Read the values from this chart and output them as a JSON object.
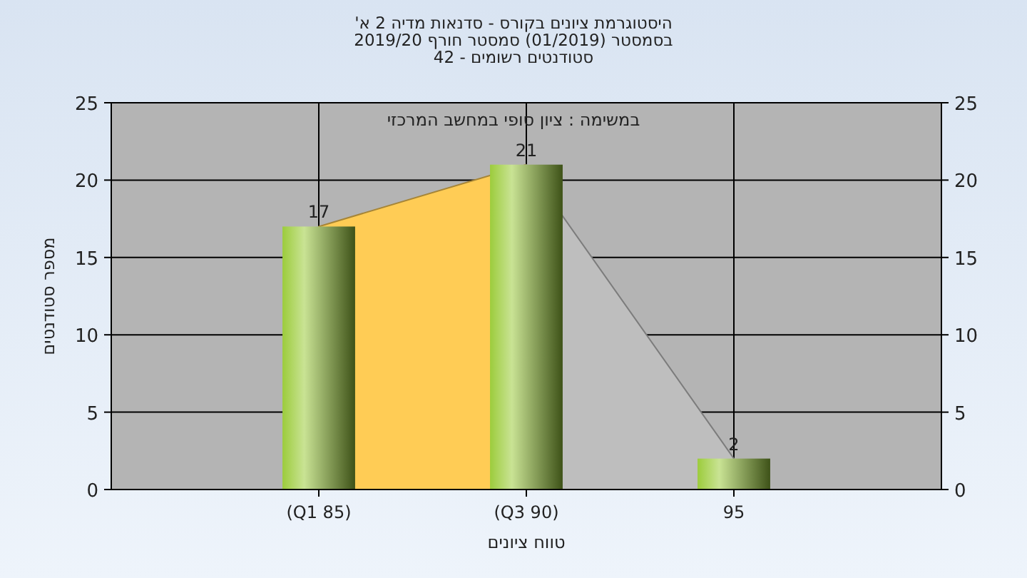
{
  "chart_data": {
    "type": "bar",
    "title": "היסטוגרמת ציונים בקורס - סדנאות מדיה 2 א'\nבסמסטר  (01/2019)  סמסטר חורף 2019/20\nסטודנטים רשומים - 42",
    "subtitle": "במשימה : ציון סופי במחשב המרכזי",
    "xlabel": "טווח ציונים",
    "ylabel": "מספר סטודנטים",
    "categories": [
      "(Q1 85)",
      "(Q3 90)",
      "95"
    ],
    "series": [
      {
        "type": "area",
        "color": "#ffcc55",
        "values": [
          17,
          21,
          null
        ]
      },
      {
        "type": "area",
        "color": "#bebebe",
        "values": [
          null,
          21,
          2
        ]
      },
      {
        "color": "#9ccc3c",
        "values": [
          17,
          21,
          2
        ],
        "value_labels": [
          "17",
          "21",
          "2"
        ]
      }
    ],
    "ylim": [
      0,
      25
    ],
    "yticks": [
      0,
      5,
      10,
      15,
      20,
      25
    ],
    "y2lim": [
      0,
      25
    ],
    "y2ticks": [
      0,
      5,
      10,
      15,
      20,
      25
    ],
    "grid": true
  }
}
